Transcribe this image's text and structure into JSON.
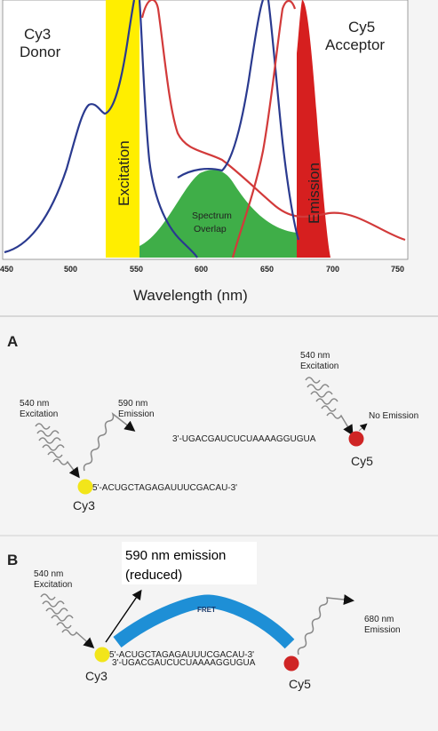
{
  "spectrum": {
    "donor_label_line1": "Cy3",
    "donor_label_line2": "Donor",
    "acceptor_label_line1": "Cy5",
    "acceptor_label_line2": "Acceptor",
    "excitation_label": "Excitation",
    "emission_label": "Emission",
    "overlap_line1": "Spectrum",
    "overlap_line2": "Overlap",
    "xlabel": "Wavelength (nm)",
    "ticks": [
      "450",
      "500",
      "550",
      "600",
      "650",
      "700",
      "750"
    ],
    "colors": {
      "donor": "#2a3a8f",
      "acceptor": "#d23a3a",
      "excitation": "#ffee00",
      "emission": "#d61f1f",
      "overlap": "#3fae48"
    }
  },
  "panel_a": {
    "letter": "A",
    "left_excitation_line1": "540 nm",
    "left_excitation_line2": "Excitation",
    "left_emission_line1": "590 nm",
    "left_emission_line2": "Emission",
    "strand_top": "3'-UGACGAUCUCUAAAAGGUGUA",
    "cy3_label": "Cy3",
    "strand_bottom": "5'-ACUGCTAGAGAUUUCGACAU-3'",
    "right_excitation_line1": "540 nm",
    "right_excitation_line2": "Excitation",
    "no_emission": "No Emission",
    "cy5_label": "Cy5"
  },
  "panel_b": {
    "letter": "B",
    "annotation_line1": "590 nm emission",
    "annotation_line2": "(reduced)",
    "excitation_line1": "540 nm",
    "excitation_line2": "Excitation",
    "fret_label": "FRET",
    "strand_top": "5'-ACUGCTAGAGAUUUCGACAU-3'",
    "strand_bottom": "3'-UGACGAUCUCUAAAAGGUGUA",
    "cy3_label": "Cy3",
    "cy5_label": "Cy5",
    "emission_line1": "680 nm",
    "emission_line2": "Emission"
  }
}
